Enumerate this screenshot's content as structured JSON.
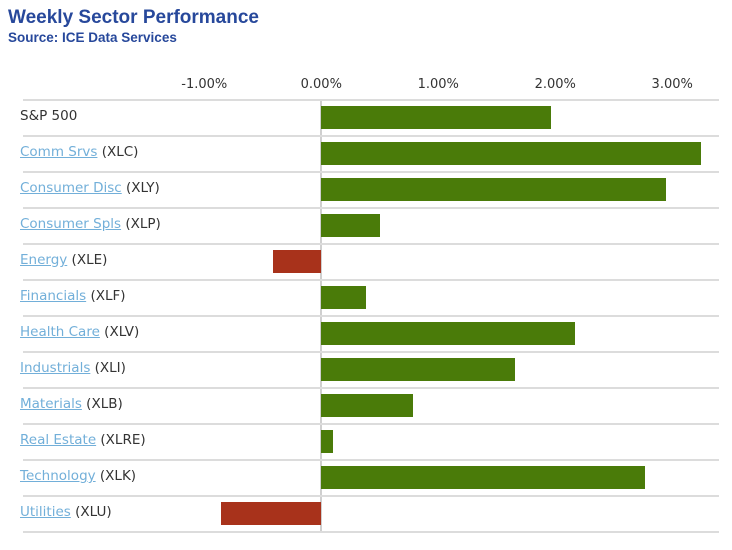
{
  "header": {
    "title": "Weekly Sector Performance",
    "source": "Source: ICE Data Services"
  },
  "colors": {
    "positive_bar": "#4A7B09",
    "negative_bar": "#A8321B",
    "title_text": "#27489B",
    "link_text": "#72AFD9",
    "label_text": "#333333",
    "grid_line": "#DCDCDC"
  },
  "chart_data": {
    "type": "bar",
    "orientation": "horizontal",
    "title": "Weekly Sector Performance",
    "subtitle": "Source: ICE Data Services",
    "unit": "%",
    "xlim": [
      -2.55,
      3.4
    ],
    "grid": "row-separators",
    "x_ticks": [
      {
        "label": "-1.00%",
        "value": -1.0
      },
      {
        "label": "0.00%",
        "value": 0.0
      },
      {
        "label": "1.00%",
        "value": 1.0
      },
      {
        "label": "2.00%",
        "value": 2.0
      },
      {
        "label": "3.00%",
        "value": 3.0
      }
    ],
    "rows": [
      {
        "label": "S&P 500",
        "is_link": false,
        "ticker": "",
        "value": 1.96
      },
      {
        "label": "Comm Srvs",
        "is_link": true,
        "ticker": "(XLC)",
        "value": 3.25
      },
      {
        "label": "Consumer Disc",
        "is_link": true,
        "ticker": "(XLY)",
        "value": 2.95
      },
      {
        "label": "Consumer Spls",
        "is_link": true,
        "ticker": "(XLP)",
        "value": 0.5
      },
      {
        "label": "Energy",
        "is_link": true,
        "ticker": "(XLE)",
        "value": -0.41
      },
      {
        "label": "Financials",
        "is_link": true,
        "ticker": "(XLF)",
        "value": 0.38
      },
      {
        "label": "Health Care",
        "is_link": true,
        "ticker": "(XLV)",
        "value": 2.17
      },
      {
        "label": "Industrials",
        "is_link": true,
        "ticker": "(XLI)",
        "value": 1.66
      },
      {
        "label": "Materials",
        "is_link": true,
        "ticker": "(XLB)",
        "value": 0.78
      },
      {
        "label": "Real Estate",
        "is_link": true,
        "ticker": "(XLRE)",
        "value": 0.1
      },
      {
        "label": "Technology",
        "is_link": true,
        "ticker": "(XLK)",
        "value": 2.77
      },
      {
        "label": "Utilities",
        "is_link": true,
        "ticker": "(XLU)",
        "value": -0.86
      }
    ]
  }
}
